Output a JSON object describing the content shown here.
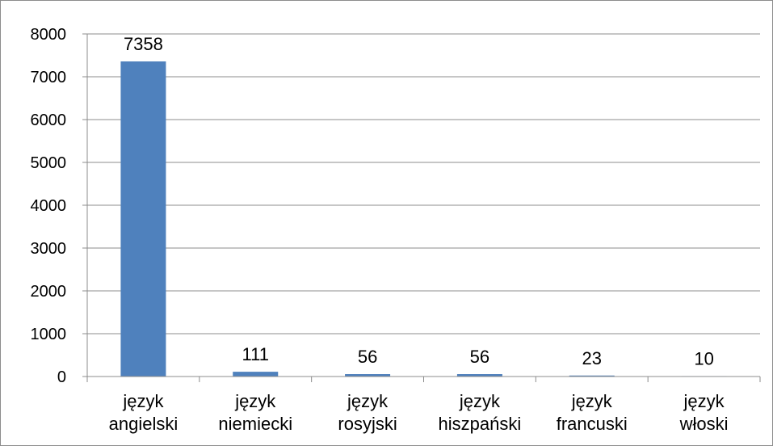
{
  "chart_data": {
    "type": "bar",
    "title": "",
    "xlabel": "",
    "ylabel": "",
    "categories": [
      [
        "język",
        "angielski"
      ],
      [
        "język",
        "niemiecki"
      ],
      [
        "język",
        "rosyjski"
      ],
      [
        "język",
        "hiszpański"
      ],
      [
        "język",
        "francuski"
      ],
      [
        "język",
        "włoski"
      ]
    ],
    "values": [
      7358,
      111,
      56,
      56,
      23,
      10
    ],
    "data_labels": [
      "7358",
      "111",
      "56",
      "56",
      "23",
      "10"
    ],
    "ylim": [
      0,
      8000
    ],
    "yticks": [
      0,
      1000,
      2000,
      3000,
      4000,
      5000,
      6000,
      7000,
      8000
    ],
    "grid": true,
    "legend": "none",
    "colors": {
      "bar": "#4f81bd",
      "grid": "#8c8c8c",
      "axis": "#8c8c8c"
    }
  }
}
